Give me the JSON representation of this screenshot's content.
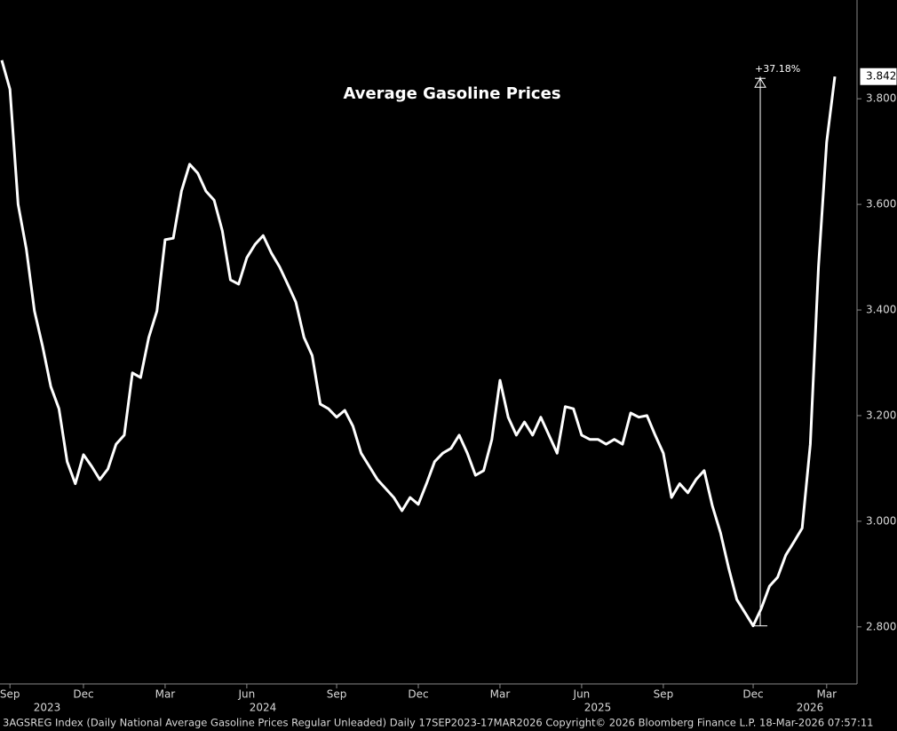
{
  "chart_data": {
    "type": "line",
    "title": "Average Gasoline Prices",
    "annotation": "+37.18%",
    "footer": "3AGSREG Index (Daily National Average Gasoline Prices Regular Unleaded) Daily 17SEP2023-17MAR2026 Copyright© 2026 Bloomberg Finance L.P. 18-Mar-2026 07:57:11",
    "years": [
      "2023",
      "2024",
      "2025",
      "2026"
    ],
    "color": "#ffffff",
    "categories": [
      null,
      "Sep",
      null,
      null,
      null,
      null,
      null,
      null,
      null,
      null,
      "Dec",
      null,
      null,
      null,
      null,
      null,
      null,
      null,
      null,
      null,
      "Mar",
      null,
      null,
      null,
      null,
      null,
      null,
      null,
      null,
      null,
      "Jun",
      null,
      null,
      null,
      null,
      null,
      null,
      null,
      null,
      null,
      null,
      "Sep",
      null,
      null,
      null,
      null,
      null,
      null,
      null,
      null,
      null,
      "Dec",
      null,
      null,
      null,
      null,
      null,
      null,
      null,
      null,
      null,
      "Mar",
      null,
      null,
      null,
      null,
      null,
      null,
      null,
      null,
      null,
      "Jun",
      null,
      null,
      null,
      null,
      null,
      null,
      null,
      null,
      null,
      "Sep",
      null,
      null,
      null,
      null,
      null,
      null,
      null,
      null,
      null,
      null,
      "Dec",
      null,
      null,
      null,
      null,
      null,
      null,
      null,
      null,
      "Mar",
      null
    ],
    "values": [
      3.873,
      3.818,
      3.6,
      3.516,
      3.398,
      3.331,
      3.255,
      3.213,
      3.113,
      3.071,
      3.126,
      3.104,
      3.079,
      3.099,
      3.146,
      3.163,
      3.281,
      3.272,
      3.348,
      3.398,
      3.533,
      3.536,
      3.625,
      3.676,
      3.659,
      3.625,
      3.608,
      3.55,
      3.457,
      3.449,
      3.499,
      3.524,
      3.541,
      3.508,
      3.482,
      3.449,
      3.415,
      3.348,
      3.314,
      3.222,
      3.213,
      3.197,
      3.21,
      3.18,
      3.129,
      3.104,
      3.079,
      3.062,
      3.045,
      3.02,
      3.045,
      3.032,
      3.071,
      3.113,
      3.129,
      3.138,
      3.163,
      3.129,
      3.087,
      3.096,
      3.155,
      3.267,
      3.197,
      3.163,
      3.188,
      3.163,
      3.197,
      3.163,
      3.129,
      3.217,
      3.213,
      3.163,
      3.155,
      3.155,
      3.146,
      3.155,
      3.146,
      3.205,
      3.197,
      3.2,
      3.163,
      3.129,
      3.045,
      3.071,
      3.054,
      3.079,
      3.096,
      3.029,
      2.978,
      2.911,
      2.852,
      2.827,
      2.802,
      2.835,
      2.877,
      2.894,
      2.936,
      2.961,
      2.987,
      3.146,
      3.482,
      3.718,
      3.842
    ],
    "ylim": [
      2.692,
      3.987
    ],
    "yticks": [
      {
        "value": 2.8,
        "label": "2.800"
      },
      {
        "value": 3.0,
        "label": "3.000"
      },
      {
        "value": 3.2,
        "label": "3.200"
      },
      {
        "value": 3.4,
        "label": "3.400"
      },
      {
        "value": 3.6,
        "label": "3.600"
      },
      {
        "value": 3.8,
        "label": "3.800"
      }
    ],
    "grid": false
  }
}
